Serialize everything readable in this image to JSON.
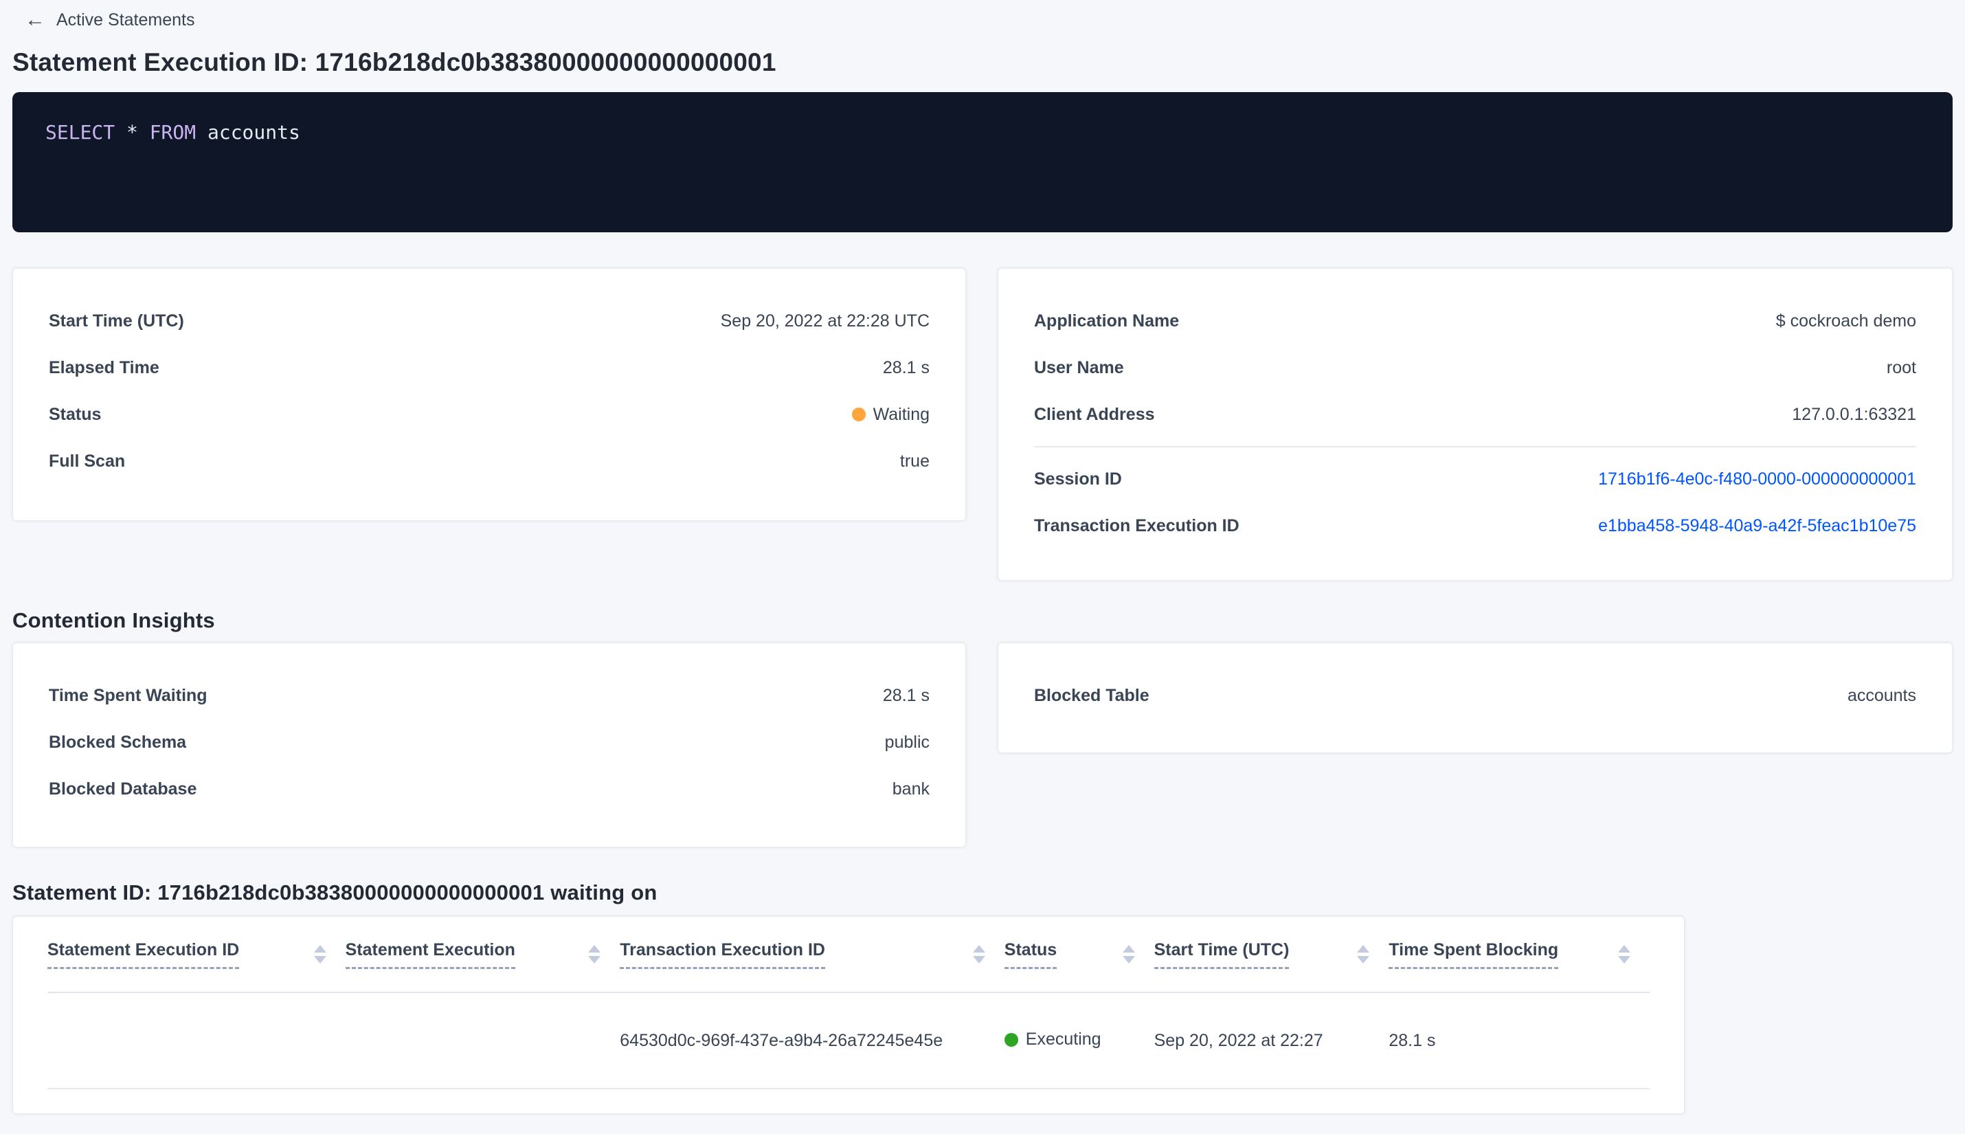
{
  "breadcrumb": {
    "back_label": "Active Statements",
    "back_icon": "arrow-left"
  },
  "page": {
    "title": "Statement Execution ID: 1716b218dc0b38380000000000000001"
  },
  "sql": {
    "select_keyword": "SELECT",
    "star": "*",
    "from_keyword": "FROM",
    "table_name": "accounts"
  },
  "overview": {
    "left": {
      "rows": [
        {
          "label": "Start Time (UTC)",
          "value": "Sep 20, 2022 at 22:28 UTC"
        },
        {
          "label": "Elapsed Time",
          "value": "28.1 s"
        },
        {
          "label": "Status",
          "value": "Waiting"
        },
        {
          "label": "Full Scan",
          "value": "true"
        }
      ]
    },
    "right": {
      "rows": [
        {
          "label": "Application Name",
          "value": "$ cockroach demo"
        },
        {
          "label": "User Name",
          "value": "root"
        },
        {
          "label": "Client Address",
          "value": "127.0.0.1:63321"
        }
      ],
      "link_rows": [
        {
          "label": "Session ID",
          "value": "1716b1f6-4e0c-f480-0000-000000000001"
        },
        {
          "label": "Transaction Execution ID",
          "value": "e1bba458-5948-40a9-a42f-5feac1b10e75"
        }
      ]
    }
  },
  "contention": {
    "heading": "Contention Insights",
    "left_rows": [
      {
        "label": "Time Spent Waiting",
        "value": "28.1 s"
      },
      {
        "label": "Blocked Schema",
        "value": "public"
      },
      {
        "label": "Blocked Database",
        "value": "bank"
      }
    ],
    "right_rows": [
      {
        "label": "Blocked Table",
        "value": "accounts"
      }
    ]
  },
  "waiting_section": {
    "heading": "Statement ID: 1716b218dc0b38380000000000000001 waiting on",
    "columns": [
      "Statement Execution ID",
      "Statement Execution",
      "Transaction Execution ID",
      "Status",
      "Start Time (UTC)",
      "Time Spent Blocking"
    ],
    "row": {
      "statement_execution_id": "",
      "statement_execution": "",
      "transaction_execution_id": "64530d0c-969f-437e-a9b4-26a72245e45e",
      "status": "Executing",
      "start_time": "Sep 20, 2022 at 22:27",
      "time_spent_blocking": "28.1 s"
    }
  },
  "colors": {
    "link": "#0055ff",
    "status_waiting": "#ffa53b",
    "status_executing": "#2da723",
    "sql_keyword": "#c9b5f0",
    "sql_text": "#e6eaf0",
    "sql_background": "#0e1628"
  }
}
